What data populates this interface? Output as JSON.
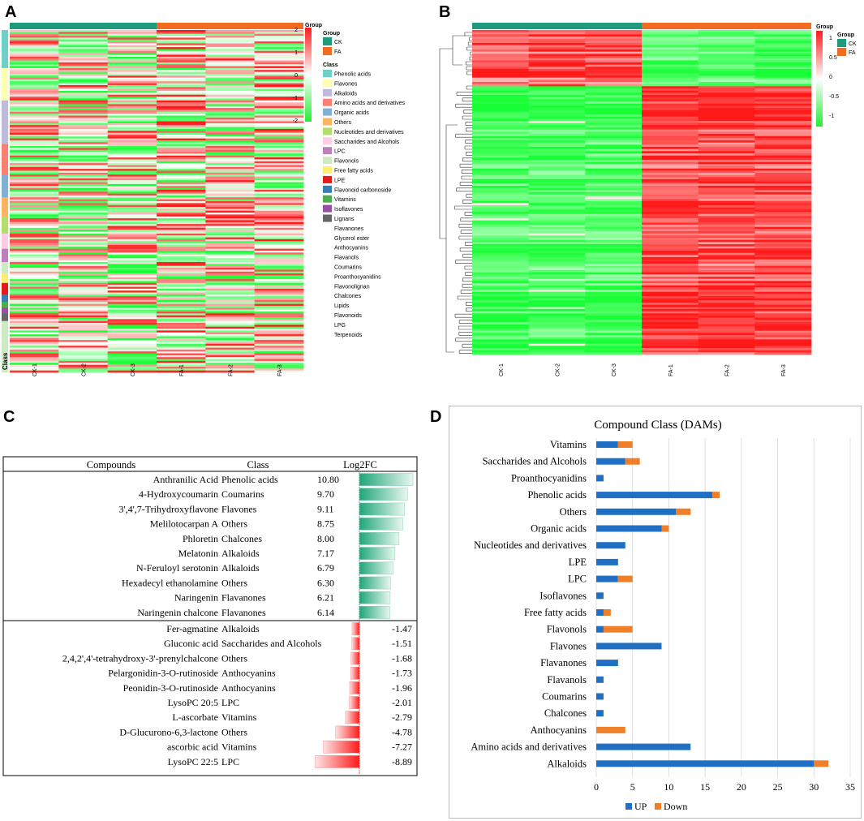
{
  "panels": {
    "a": "A",
    "b": "B",
    "c": "C",
    "d": "D"
  },
  "colors": {
    "ck": "#1f9a7c",
    "fa": "#f26b21",
    "up": "#1f6fc4",
    "down": "#f07f29",
    "red": "#ff1a1a",
    "green": "#22dd44"
  },
  "heatmap_a": {
    "samples": [
      "CK-1",
      "CK-2",
      "CK-3",
      "FA-1",
      "FA-2",
      "FA-3"
    ],
    "class_axis_label": "Class",
    "scale": {
      "ticks": [
        "2",
        "1",
        "0",
        "-1",
        "-2"
      ]
    },
    "group_legend": {
      "title": "Group",
      "items": [
        "CK",
        "FA"
      ]
    },
    "class_legend": {
      "title": "Class",
      "items": [
        {
          "label": "Phenolic acids",
          "color": "#6fd0c7"
        },
        {
          "label": "Flavones",
          "color": "#ffffb3"
        },
        {
          "label": "Alkaloids",
          "color": "#bebada"
        },
        {
          "label": "Amino acids and derivatives",
          "color": "#fb8072"
        },
        {
          "label": "Organic acids",
          "color": "#80b1d3"
        },
        {
          "label": "Others",
          "color": "#fdb462"
        },
        {
          "label": "Nucleotides and derivatives",
          "color": "#b3de69"
        },
        {
          "label": "Saccharides and Alcohols",
          "color": "#fccde5"
        },
        {
          "label": "LPC",
          "color": "#bc80bd"
        },
        {
          "label": "Flavonols",
          "color": "#ccebc5"
        },
        {
          "label": "Free fatty acids",
          "color": "#ffed6f"
        },
        {
          "label": "LPE",
          "color": "#e41a1c"
        },
        {
          "label": "Flavonoid carbonoside",
          "color": "#377eb8"
        },
        {
          "label": "Vitamins",
          "color": "#4daf4a"
        },
        {
          "label": "Isoflavones",
          "color": "#984ea3"
        },
        {
          "label": "Lignans",
          "color": "#666666"
        },
        {
          "label": "Flavanones",
          "color": ""
        },
        {
          "label": "Glycerol ester",
          "color": ""
        },
        {
          "label": "Anthocyanins",
          "color": ""
        },
        {
          "label": "Flavanols",
          "color": ""
        },
        {
          "label": "Coumarins",
          "color": ""
        },
        {
          "label": "Proanthocyanidins",
          "color": ""
        },
        {
          "label": "Flavonolignan",
          "color": ""
        },
        {
          "label": "Chalcones",
          "color": ""
        },
        {
          "label": "Lipids",
          "color": ""
        },
        {
          "label": "Flavonoids",
          "color": ""
        },
        {
          "label": "LPG",
          "color": ""
        },
        {
          "label": "Terpenoids",
          "color": ""
        }
      ]
    }
  },
  "heatmap_b": {
    "samples": [
      "CK-1",
      "CK-2",
      "CK-3",
      "FA-1",
      "FA-2",
      "FA-3"
    ],
    "scale": {
      "ticks": [
        "1",
        "0.5",
        "0",
        "-0.5",
        "-1"
      ]
    },
    "group_legend": {
      "title": "Group",
      "items": [
        "CK",
        "FA"
      ]
    }
  },
  "table_c": {
    "headers": [
      "Compounds",
      "Class",
      "Log2FC"
    ],
    "rows": [
      {
        "compound": "Anthranilic Acid",
        "class": "Phenolic acids",
        "log2fc": 10.8,
        "text": "10.80"
      },
      {
        "compound": "4-Hydroxycoumarin",
        "class": "Coumarins",
        "log2fc": 9.7,
        "text": "9.70"
      },
      {
        "compound": "3',4',7-Trihydroxyflavone",
        "class": "Flavones",
        "log2fc": 9.11,
        "text": "9.11"
      },
      {
        "compound": "Melilotocarpan A",
        "class": "Others",
        "log2fc": 8.75,
        "text": "8.75"
      },
      {
        "compound": "Phloretin",
        "class": "Chalcones",
        "log2fc": 8.0,
        "text": "8.00"
      },
      {
        "compound": "Melatonin",
        "class": "Alkaloids",
        "log2fc": 7.17,
        "text": "7.17"
      },
      {
        "compound": "N-Feruloyl serotonin",
        "class": "Alkaloids",
        "log2fc": 6.79,
        "text": "6.79"
      },
      {
        "compound": "Hexadecyl ethanolamine",
        "class": "Others",
        "log2fc": 6.3,
        "text": "6.30"
      },
      {
        "compound": "Naringenin",
        "class": "Flavanones",
        "log2fc": 6.21,
        "text": "6.21"
      },
      {
        "compound": "Naringenin chalcone",
        "class": "Flavanones",
        "log2fc": 6.14,
        "text": "6.14"
      },
      {
        "compound": "Fer-agmatine",
        "class": "Alkaloids",
        "log2fc": -1.47,
        "text": "-1.47"
      },
      {
        "compound": "Gluconic acid",
        "class": "Saccharides and Alcohols",
        "log2fc": -1.51,
        "text": "-1.51"
      },
      {
        "compound": "2,4,2',4'-tetrahydroxy-3'-prenylchalcone",
        "class": "Others",
        "log2fc": -1.68,
        "text": "-1.68"
      },
      {
        "compound": "Pelargonidin-3-O-rutinoside",
        "class": "Anthocyanins",
        "log2fc": -1.73,
        "text": "-1.73"
      },
      {
        "compound": "Peonidin-3-O-rutinoside",
        "class": "Anthocyanins",
        "log2fc": -1.96,
        "text": "-1.96"
      },
      {
        "compound": "LysoPC 20:5",
        "class": "LPC",
        "log2fc": -2.01,
        "text": "-2.01"
      },
      {
        "compound": "L-ascorbate",
        "class": "Vitamins",
        "log2fc": -2.79,
        "text": "-2.79"
      },
      {
        "compound": "D-Glucurono-6,3-lactone",
        "class": "Others",
        "log2fc": -4.78,
        "text": "-4.78"
      },
      {
        "compound": "ascorbic acid",
        "class": "Vitamins",
        "log2fc": -7.27,
        "text": "-7.27"
      },
      {
        "compound": "LysoPC 22:5",
        "class": "LPC",
        "log2fc": -8.89,
        "text": "-8.89"
      }
    ]
  },
  "chart_data": {
    "type": "bar",
    "orientation": "horizontal",
    "stacked": true,
    "title": "Compound Class (DAMs)",
    "categories": [
      "Vitamins",
      "Saccharides and Alcohols",
      "Proanthocyanidins",
      "Phenolic acids",
      "Others",
      "Organic acids",
      "Nucleotides and derivatives",
      "LPE",
      "LPC",
      "Isoflavones",
      "Free fatty acids",
      "Flavonols",
      "Flavones",
      "Flavanones",
      "Flavanols",
      "Coumarins",
      "Chalcones",
      "Anthocyanins",
      "Amino acids and derivatives",
      "Alkaloids"
    ],
    "series": [
      {
        "name": "UP",
        "values": [
          3,
          4,
          1,
          16,
          11,
          9,
          4,
          3,
          3,
          1,
          1,
          1,
          9,
          3,
          1,
          1,
          1,
          0,
          13,
          30
        ]
      },
      {
        "name": "Down",
        "values": [
          2,
          2,
          0,
          1,
          2,
          1,
          0,
          0,
          2,
          0,
          1,
          4,
          0,
          0,
          0,
          0,
          0,
          4,
          0,
          2
        ]
      }
    ],
    "xlim": [
      0,
      35
    ],
    "xticks": [
      "0",
      "5",
      "10",
      "15",
      "20",
      "25",
      "30",
      "35"
    ],
    "legend_position": "bottom"
  }
}
